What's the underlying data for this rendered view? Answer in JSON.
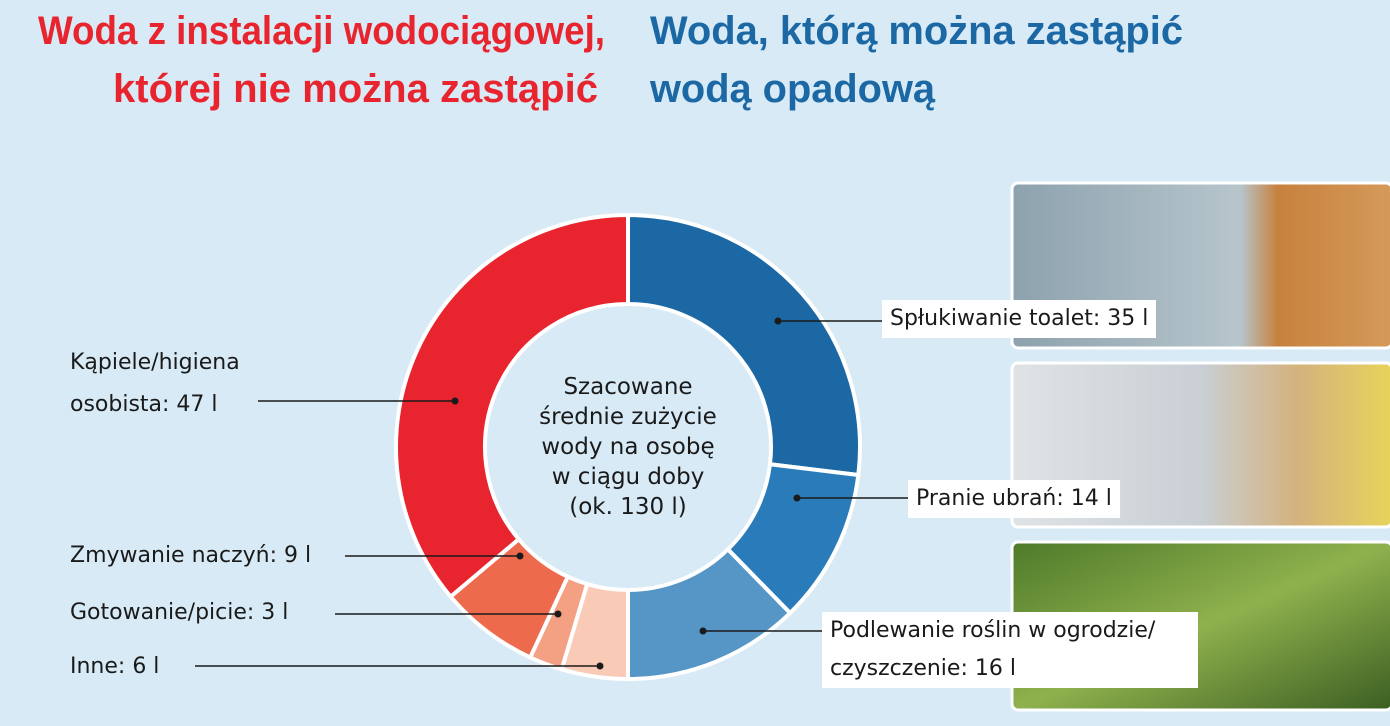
{
  "chart_data": {
    "type": "donut",
    "title_left": [
      "Woda z instalacji wodociągowej,",
      "której nie można zastąpić"
    ],
    "title_right": [
      "Woda, którą można zastąpić",
      "wodą opadową"
    ],
    "center_label": [
      "Szacowane",
      "średnie zużycie",
      "wody na osobę",
      "w ciągu doby",
      "(ok. 130 l)"
    ],
    "values": [
      35,
      14,
      16,
      6,
      3,
      9,
      47
    ],
    "value_labels": [
      "Spłukiwanie toalet: 35 l",
      "Pranie ubrań: 14 l",
      "Podlewanie roślin w ogrodzie/ czyszczenie: 16 l",
      "Inne: 6 l",
      "Gotowanie/picie: 3 l",
      "Zmywanie naczyń: 9 l",
      "Kąpiele/higiena osobista: 47 l"
    ],
    "colors": [
      "#1c68a4",
      "#2a7bb9",
      "#5596c6",
      "#f9cbb6",
      "#f4a083",
      "#ed6a4d",
      "#e8252f"
    ]
  }
}
